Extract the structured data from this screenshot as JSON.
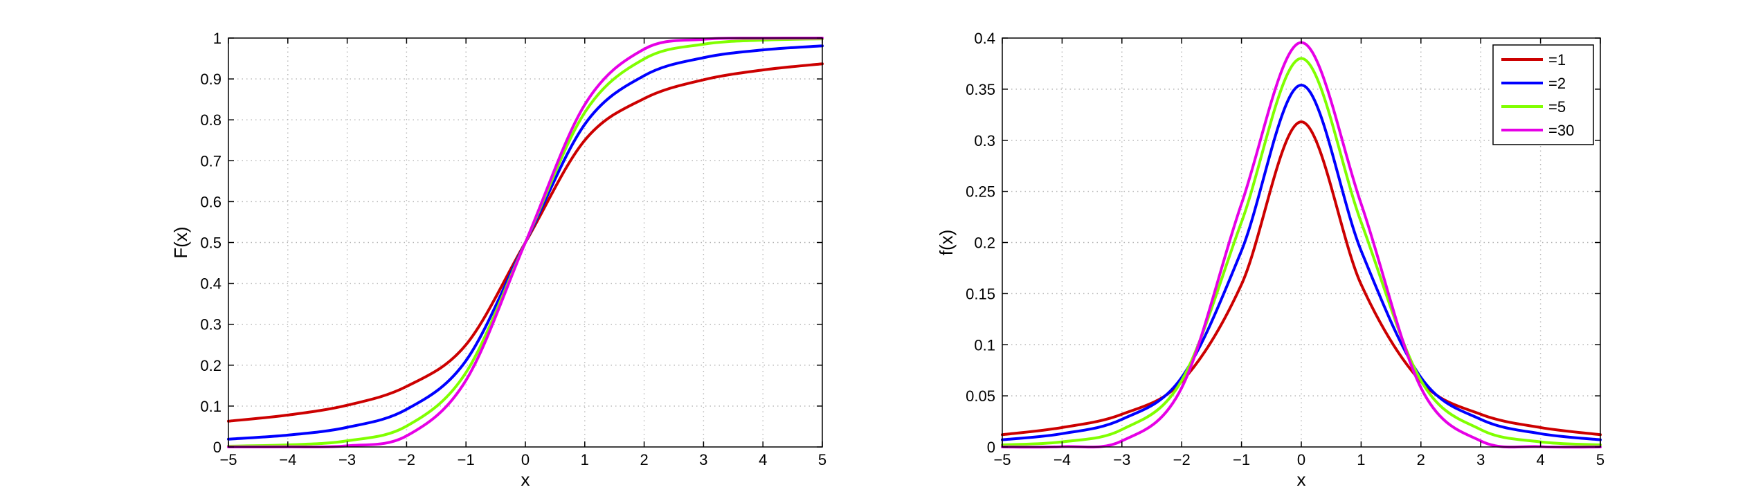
{
  "chart_data": [
    {
      "type": "line",
      "title": "",
      "xlabel": "x",
      "ylabel": "F(x)",
      "xlim": [
        -5,
        5
      ],
      "ylim": [
        0,
        1
      ],
      "xticks": [
        -5,
        -4,
        -3,
        -2,
        -1,
        0,
        1,
        2,
        3,
        4,
        5
      ],
      "xtick_labels": [
        "−5",
        "−4",
        "−3",
        "−2",
        "−1",
        "0",
        "1",
        "2",
        "3",
        "4",
        "5"
      ],
      "yticks": [
        0,
        0.1,
        0.2,
        0.3,
        0.4,
        0.5,
        0.6,
        0.7,
        0.8,
        0.9,
        1
      ],
      "ytick_labels": [
        "0",
        "0.1",
        "0.2",
        "0.3",
        "0.4",
        "0.5",
        "0.6",
        "0.7",
        "0.8",
        "0.9",
        "1"
      ],
      "grid": true,
      "legend": false,
      "x": [
        -5,
        -4,
        -3,
        -2,
        -1,
        0,
        1,
        2,
        3,
        4,
        5
      ],
      "series": [
        {
          "name": "=1",
          "color": "#cc0000",
          "values": [
            0.063,
            0.078,
            0.102,
            0.148,
            0.25,
            0.5,
            0.75,
            0.852,
            0.898,
            0.922,
            0.937
          ]
        },
        {
          "name": "=2",
          "color": "#0000ff",
          "values": [
            0.019,
            0.029,
            0.048,
            0.092,
            0.211,
            0.5,
            0.789,
            0.908,
            0.952,
            0.971,
            0.981
          ]
        },
        {
          "name": "=5",
          "color": "#80ff00",
          "values": [
            0.002,
            0.005,
            0.015,
            0.051,
            0.182,
            0.5,
            0.818,
            0.949,
            0.985,
            0.995,
            0.998
          ]
        },
        {
          "name": "=30",
          "color": "#e600e6",
          "values": [
            0.0,
            0.0002,
            0.0027,
            0.027,
            0.163,
            0.5,
            0.837,
            0.973,
            0.997,
            0.9998,
            1.0
          ]
        }
      ]
    },
    {
      "type": "line",
      "title": "",
      "xlabel": "x",
      "ylabel": "f(x)",
      "xlim": [
        -5,
        5
      ],
      "ylim": [
        0,
        0.4
      ],
      "xticks": [
        -5,
        -4,
        -3,
        -2,
        -1,
        0,
        1,
        2,
        3,
        4,
        5
      ],
      "xtick_labels": [
        "−5",
        "−4",
        "−3",
        "−2",
        "−1",
        "0",
        "1",
        "2",
        "3",
        "4",
        "5"
      ],
      "yticks": [
        0,
        0.05,
        0.1,
        0.15,
        0.2,
        0.25,
        0.3,
        0.35,
        0.4
      ],
      "ytick_labels": [
        "0",
        "0.05",
        "0.1",
        "0.15",
        "0.2",
        "0.25",
        "0.3",
        "0.35",
        "0.4"
      ],
      "grid": true,
      "legend": "top-right",
      "x": [
        -5,
        -4,
        -3,
        -2,
        -1,
        0,
        1,
        2,
        3,
        4,
        5
      ],
      "series": [
        {
          "name": "=1",
          "color": "#cc0000",
          "values": [
            0.012,
            0.019,
            0.032,
            0.064,
            0.159,
            0.318,
            0.159,
            0.064,
            0.032,
            0.019,
            0.012
          ]
        },
        {
          "name": "=2",
          "color": "#0000ff",
          "values": [
            0.007,
            0.013,
            0.027,
            0.068,
            0.192,
            0.354,
            0.192,
            0.068,
            0.027,
            0.013,
            0.007
          ]
        },
        {
          "name": "=5",
          "color": "#80ff00",
          "values": [
            0.002,
            0.005,
            0.017,
            0.065,
            0.22,
            0.38,
            0.22,
            0.065,
            0.017,
            0.005,
            0.002
          ]
        },
        {
          "name": "=30",
          "color": "#e600e6",
          "values": [
            0.0,
            0.0003,
            0.0059,
            0.0579,
            0.2379,
            0.3956,
            0.2379,
            0.0579,
            0.0059,
            0.0003,
            0.0
          ]
        }
      ]
    }
  ]
}
